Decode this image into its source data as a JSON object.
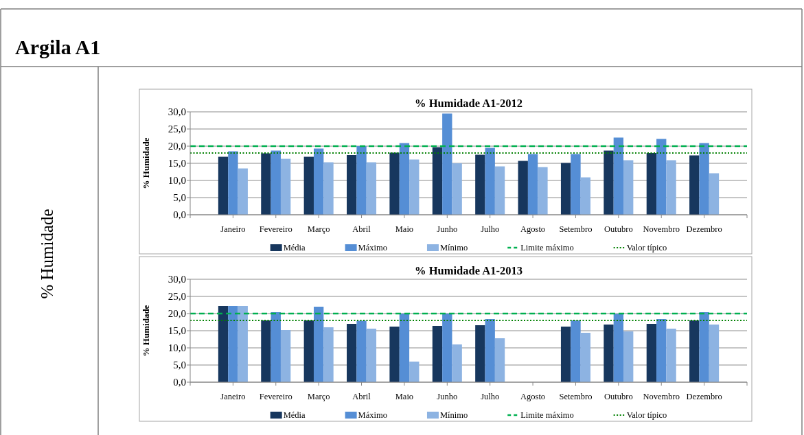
{
  "chart_data": [
    {
      "type": "other",
      "title": "Argila A1",
      "annotations": [
        "% Humidade"
      ]
    },
    {
      "type": "bar",
      "title": "% Humidade A1-2012",
      "ylabel": "% Humidade",
      "categories": [
        "Janeiro",
        "Fevereiro",
        "Março",
        "Abril",
        "Maio",
        "Junho",
        "Julho",
        "Agosto",
        "Setembro",
        "Outubro",
        "Novembro",
        "Dezembro"
      ],
      "series": [
        {
          "name": "Média",
          "color": "#17375e",
          "values": [
            16.9,
            17.9,
            16.9,
            17.4,
            18.1,
            19.7,
            17.5,
            15.7,
            15.1,
            18.7,
            18.0,
            17.3
          ]
        },
        {
          "name": "Máximo",
          "color": "#558ed5",
          "values": [
            18.5,
            18.7,
            19.3,
            20.0,
            20.9,
            29.5,
            19.5,
            17.7,
            17.7,
            22.5,
            22.1,
            20.9
          ]
        },
        {
          "name": "Mínimo",
          "color": "#8db3e2",
          "values": [
            13.5,
            16.3,
            15.3,
            15.3,
            16.1,
            15.0,
            14.1,
            13.9,
            10.9,
            15.9,
            15.9,
            12.1
          ]
        }
      ],
      "ylim": [
        0,
        30
      ],
      "yticks": [
        {
          "value": 0,
          "label": "0,0"
        },
        {
          "value": 5,
          "label": "5,0"
        },
        {
          "value": 10,
          "label": "10,0"
        },
        {
          "value": 15,
          "label": "15,0"
        },
        {
          "value": 20,
          "label": "20,0"
        },
        {
          "value": 25,
          "label": "25,0"
        },
        {
          "value": 30,
          "label": "30,0"
        }
      ],
      "grid": "y",
      "legend": "bottom",
      "ref_lines": [
        {
          "axis": "y",
          "value": 20,
          "label": "Limite máximo",
          "color": "#00b050",
          "line_style": "dashed"
        },
        {
          "axis": "y",
          "value": 18,
          "label": "Valor típico",
          "color": "#008000",
          "line_style": "dotted"
        }
      ]
    },
    {
      "type": "bar",
      "title": "% Humidade A1-2013",
      "ylabel": "% Humidade",
      "categories": [
        "Janeiro",
        "Fevereiro",
        "Março",
        "Abril",
        "Maio",
        "Junho",
        "Julho",
        "Agosto",
        "Setembro",
        "Outubro",
        "Novembro",
        "Dezembro"
      ],
      "series": [
        {
          "name": "Média",
          "color": "#17375e",
          "values": [
            22.2,
            18.0,
            18.0,
            17.0,
            16.2,
            16.4,
            16.6,
            null,
            16.2,
            16.8,
            17.0,
            18.0
          ]
        },
        {
          "name": "Máximo",
          "color": "#558ed5",
          "values": [
            22.2,
            20.4,
            22.0,
            17.9,
            20.0,
            20.0,
            18.4,
            null,
            18.0,
            19.9,
            18.4,
            20.4
          ]
        },
        {
          "name": "Mínimo",
          "color": "#8db3e2",
          "values": [
            22.2,
            15.2,
            16.0,
            15.6,
            6.0,
            11.0,
            12.8,
            null,
            14.4,
            14.8,
            15.6,
            16.8
          ]
        }
      ],
      "ylim": [
        0,
        30
      ],
      "yticks": [
        {
          "value": 0,
          "label": "0,0"
        },
        {
          "value": 5,
          "label": "5,0"
        },
        {
          "value": 10,
          "label": "10,0"
        },
        {
          "value": 15,
          "label": "15,0"
        },
        {
          "value": 20,
          "label": "20,0"
        },
        {
          "value": 25,
          "label": "25,0"
        },
        {
          "value": 30,
          "label": "30,0"
        }
      ],
      "grid": "y",
      "legend": "bottom",
      "ref_lines": [
        {
          "axis": "y",
          "value": 20,
          "label": "Limite máximo",
          "color": "#00b050",
          "line_style": "dashed"
        },
        {
          "axis": "y",
          "value": 18,
          "label": "Valor típico",
          "color": "#008000",
          "line_style": "dotted"
        }
      ]
    }
  ]
}
